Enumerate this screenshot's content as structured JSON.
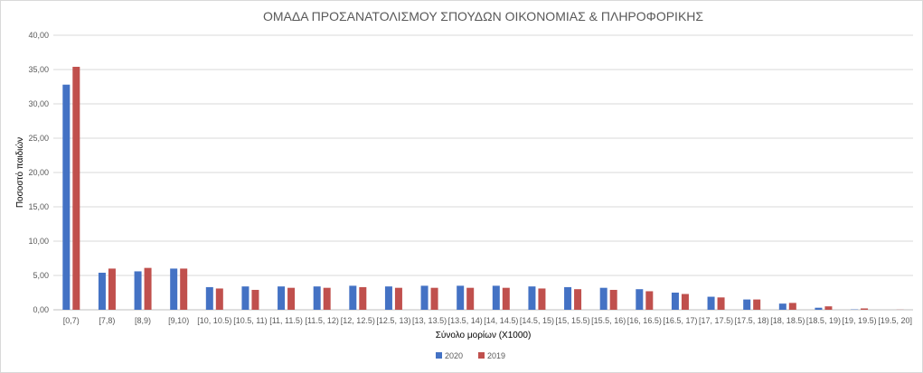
{
  "chart_data": {
    "type": "bar",
    "title": "ΟΜΑΔΑ ΠΡΟΣΑΝΑΤΟΛΙΣΜΟΥ ΣΠΟΥΔΩΝ ΟΙΚΟΝΟΜΙΑΣ & ΠΛΗΡΟΦΟΡΙΚΗΣ",
    "xlabel": "Σύνολο μορίων (Χ1000)",
    "ylabel": "Ποσοστό παιδιών",
    "ylim": [
      0,
      40
    ],
    "yticks": [
      "0,00",
      "5,00",
      "10,00",
      "15,00",
      "20,00",
      "25,00",
      "30,00",
      "35,00",
      "40,00"
    ],
    "grid": true,
    "legend_position": "bottom",
    "categories": [
      "[0,7)",
      "[7,8)",
      "[8,9)",
      "[9,10)",
      "[10, 10.5)",
      "[10.5, 11)",
      "[11, 11.5)",
      "[11.5, 12)",
      "[12, 12.5)",
      "[12.5, 13)",
      "[13, 13.5)",
      "[13.5, 14)",
      "[14, 14.5)",
      "[14.5, 15)",
      "[15, 15.5)",
      "[15.5, 16)",
      "[16, 16.5)",
      "[16.5, 17)",
      "[17, 17.5)",
      "[17.5, 18)",
      "[18, 18.5)",
      "[18.5, 19)",
      "[19, 19.5)",
      "[19.5, 20]"
    ],
    "series": [
      {
        "name": "2020",
        "color": "#4472c4",
        "values": [
          32.8,
          5.4,
          5.6,
          6.0,
          3.3,
          3.4,
          3.4,
          3.4,
          3.5,
          3.4,
          3.5,
          3.5,
          3.5,
          3.4,
          3.3,
          3.2,
          3.0,
          2.5,
          1.9,
          1.5,
          0.9,
          0.3,
          0.05,
          0.0
        ]
      },
      {
        "name": "2019",
        "color": "#c0504d",
        "values": [
          35.4,
          6.0,
          6.1,
          6.0,
          3.1,
          2.9,
          3.2,
          3.2,
          3.3,
          3.2,
          3.2,
          3.2,
          3.2,
          3.1,
          3.0,
          2.9,
          2.7,
          2.3,
          1.8,
          1.5,
          1.0,
          0.5,
          0.2,
          0.02
        ]
      }
    ]
  }
}
